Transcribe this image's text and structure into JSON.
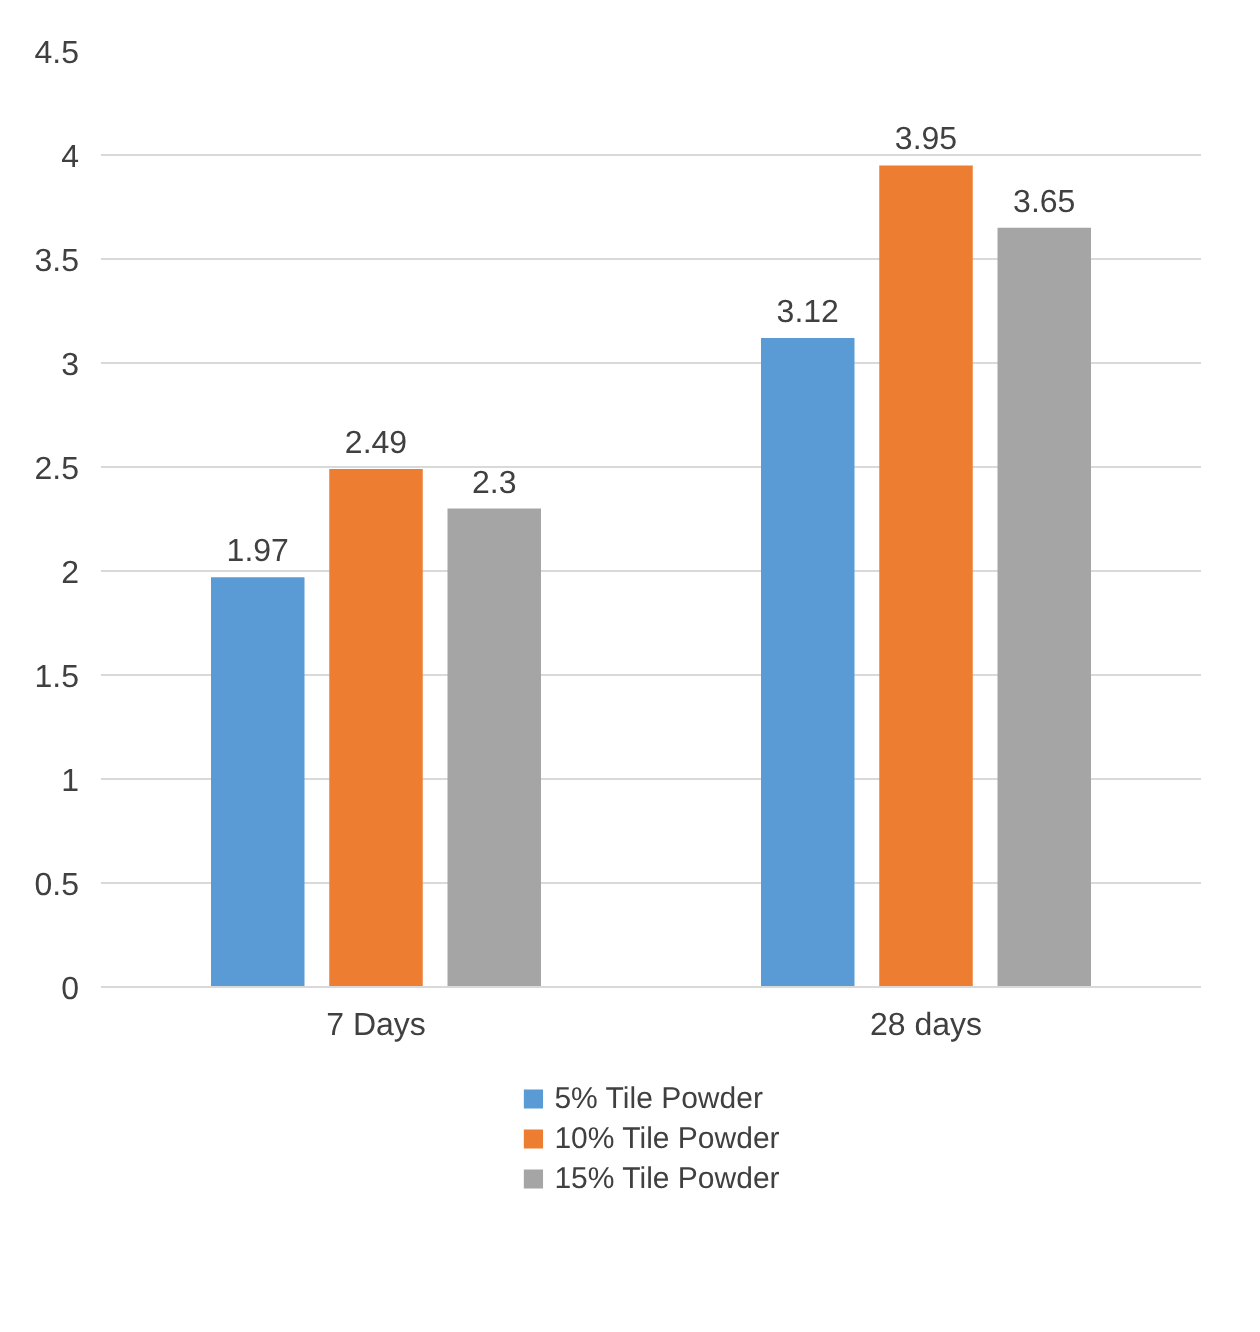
{
  "chart_data": {
    "type": "bar",
    "categories": [
      "7 Days",
      "28 days"
    ],
    "series": [
      {
        "name": "5% Tile Powder",
        "color": "#5b9bd5",
        "values": [
          1.97,
          3.12
        ]
      },
      {
        "name": "10% Tile Powder",
        "color": "#ed7d31",
        "values": [
          2.49,
          3.95
        ]
      },
      {
        "name": "15% Tile Powder",
        "color": "#a5a5a5",
        "values": [
          2.3,
          3.65
        ]
      }
    ],
    "ylim": [
      0,
      4.5
    ],
    "yticks": [
      0,
      {
        "value": 0.5,
        "label": "0.5"
      },
      1,
      {
        "value": 1.5,
        "label": "1.5"
      },
      2,
      {
        "value": 2.5,
        "label": "2.5"
      },
      3,
      {
        "value": 3.5,
        "label": "3.5"
      },
      4,
      {
        "value": 4.5,
        "label": "4.5"
      }
    ],
    "grid": "y",
    "legend": "bottom",
    "data_labels": true
  }
}
